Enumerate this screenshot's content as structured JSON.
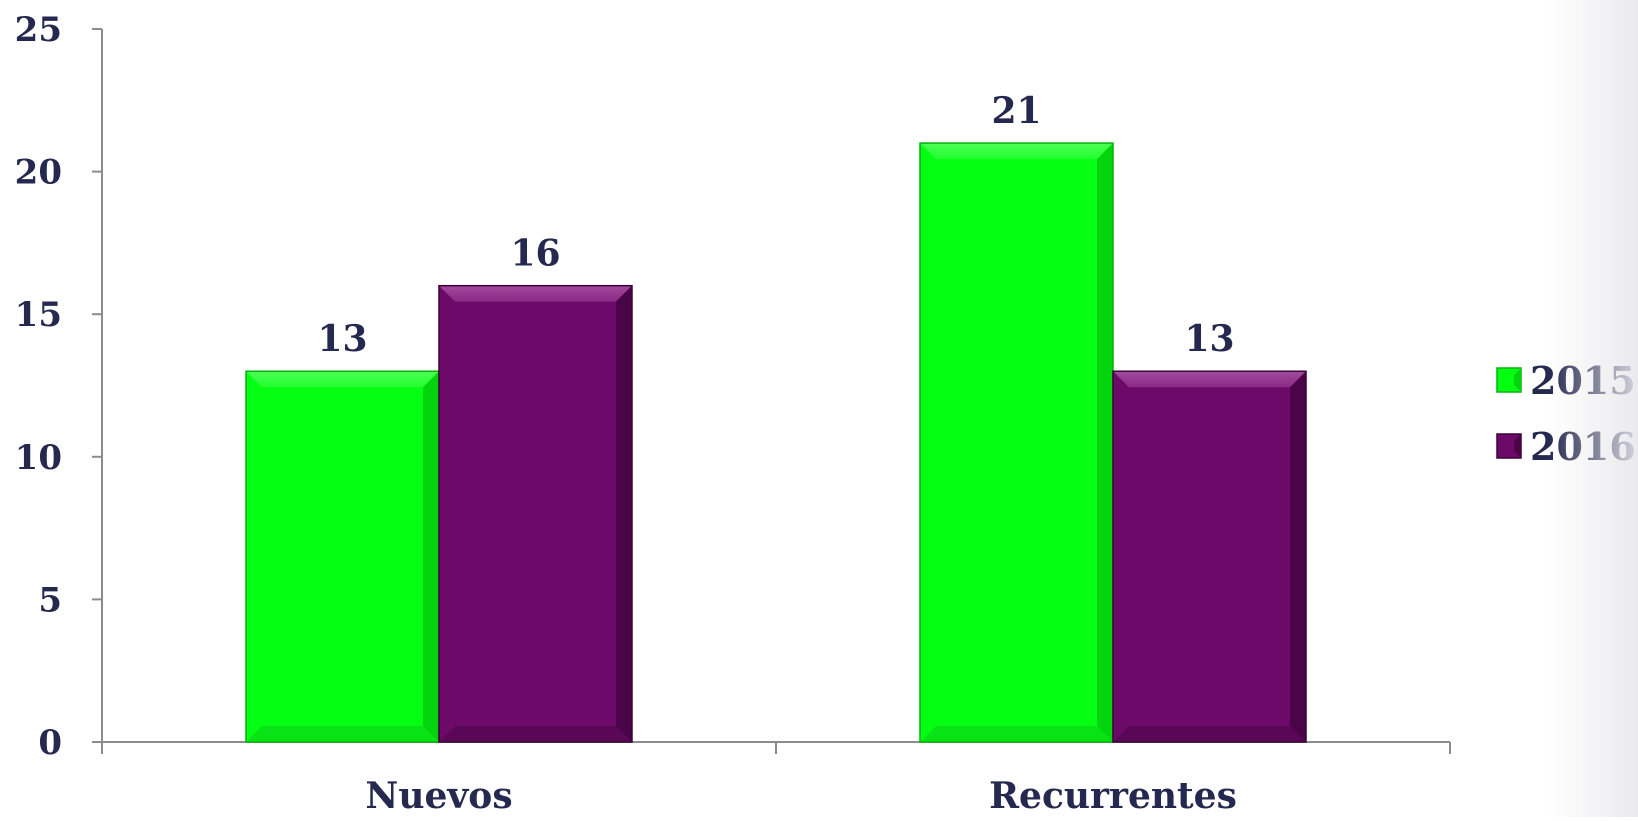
{
  "chart_data": {
    "type": "bar",
    "title": "",
    "xlabel": "",
    "ylabel": "",
    "categories": [
      "Nuevos",
      "Recurrentes"
    ],
    "series": [
      {
        "name": "2015",
        "values": [
          13,
          21
        ],
        "color": "#05ff12"
      },
      {
        "name": "2016",
        "values": [
          16,
          13
        ],
        "color": "#6d0a69"
      }
    ],
    "ylim": [
      0,
      25
    ],
    "yticks": [
      0,
      5,
      10,
      15,
      20,
      25
    ],
    "ytick_labels": [
      "0",
      "5",
      "10",
      "15",
      "20",
      "25"
    ],
    "data_labels": true,
    "grid": false,
    "legend_position": "right"
  }
}
